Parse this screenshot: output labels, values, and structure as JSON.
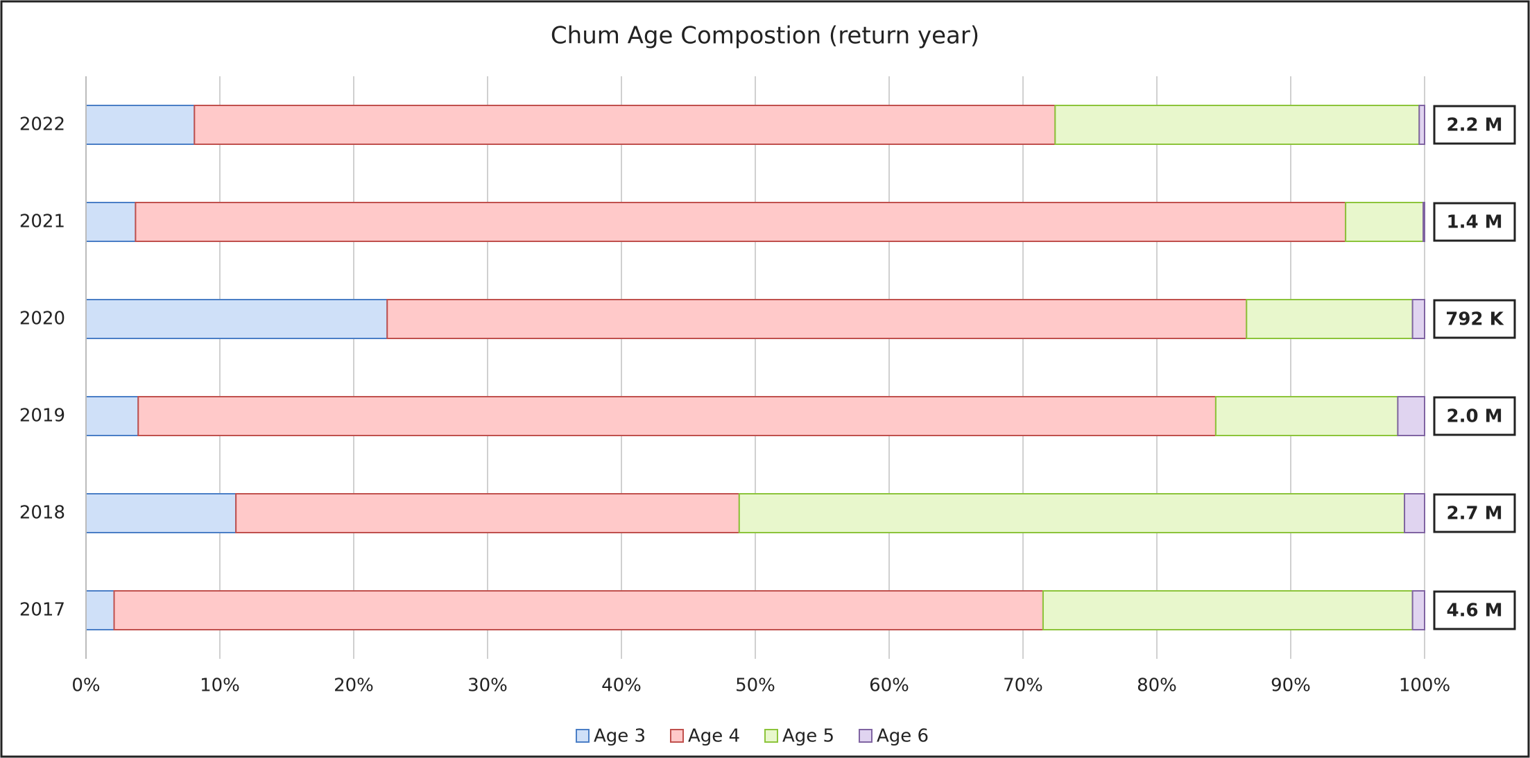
{
  "chart_data": {
    "type": "stacked_barh",
    "title": "Chum Age Compostion (return year)",
    "categories": [
      "2017",
      "2018",
      "2019",
      "2020",
      "2021",
      "2022"
    ],
    "series": [
      {
        "name": "Age 3",
        "color": "#cfe0f8",
        "edge": "#4a7ec6",
        "values": [
          2.1,
          11.2,
          3.9,
          22.5,
          3.7,
          8.1
        ]
      },
      {
        "name": "Age 4",
        "color": "#ffc9c9",
        "edge": "#c0504d",
        "values": [
          69.4,
          37.6,
          80.5,
          64.2,
          90.4,
          64.3
        ]
      },
      {
        "name": "Age 5",
        "color": "#e8f7cc",
        "edge": "#8cc43a",
        "values": [
          27.6,
          49.7,
          13.6,
          12.4,
          5.8,
          27.2
        ]
      },
      {
        "name": "Age 6",
        "color": "#e0d4f0",
        "edge": "#8064a2",
        "values": [
          0.9,
          1.5,
          2.0,
          0.9,
          0.1,
          0.4
        ]
      }
    ],
    "totals": {
      "values": [
        4600000,
        2700000,
        2000000,
        792000,
        1400000,
        2200000
      ],
      "value_labels": [
        "4.6 M",
        "2.7 M",
        "2.0 M",
        "792 K",
        "1.4 M",
        "2.2 M"
      ]
    },
    "xlim": [
      0,
      100
    ],
    "xticks": [
      {
        "value": 0,
        "label": "0%"
      },
      {
        "value": 10,
        "label": "10%"
      },
      {
        "value": 20,
        "label": "20%"
      },
      {
        "value": 30,
        "label": "30%"
      },
      {
        "value": 40,
        "label": "40%"
      },
      {
        "value": 50,
        "label": "50%"
      },
      {
        "value": 60,
        "label": "60%"
      },
      {
        "value": 70,
        "label": "70%"
      },
      {
        "value": 80,
        "label": "80%"
      },
      {
        "value": 90,
        "label": "90%"
      },
      {
        "value": 100,
        "label": "100%"
      }
    ],
    "grid": true,
    "legend": "bottom"
  }
}
